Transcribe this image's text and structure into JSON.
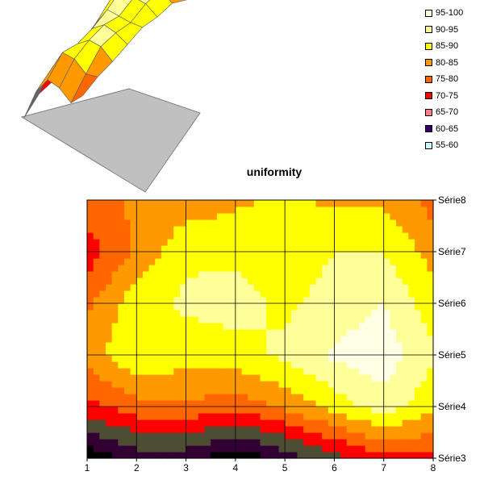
{
  "chart_data": {
    "type": "heatmap",
    "title": "uniformity",
    "x": [
      1,
      2,
      3,
      4,
      5,
      6,
      7,
      8
    ],
    "series": [
      {
        "name": "Série3",
        "values": [
          56,
          62,
          62,
          56,
          62,
          68,
          73,
          74
        ]
      },
      {
        "name": "Série4",
        "values": [
          73,
          78,
          79,
          77,
          81,
          87,
          93,
          86
        ]
      },
      {
        "name": "Série5",
        "values": [
          82,
          90,
          87,
          88,
          91,
          96,
          98,
          91
        ]
      },
      {
        "name": "Série6",
        "values": [
          79,
          88,
          91,
          92,
          89,
          92,
          95,
          87
        ]
      },
      {
        "name": "Série7",
        "values": [
          72,
          81,
          89,
          89,
          87,
          90,
          90,
          83
        ]
      },
      {
        "name": "Série8",
        "values": [
          78,
          81,
          82,
          84,
          86,
          84,
          84,
          78
        ]
      }
    ],
    "legend": [
      "95-100",
      "90-95",
      "85-90",
      "80-85",
      "75-80",
      "70-75",
      "65-70",
      "60-65",
      "55-60"
    ],
    "legend_position": "top-right",
    "grid": true,
    "zlim": [
      55,
      100
    ],
    "bands": [
      {
        "min": 95,
        "max": 100,
        "color": "#ffffe6"
      },
      {
        "min": 90,
        "max": 95,
        "color": "#ffff99"
      },
      {
        "min": 85,
        "max": 90,
        "color": "#ffff00"
      },
      {
        "min": 80,
        "max": 85,
        "color": "#ff9900"
      },
      {
        "min": 75,
        "max": 80,
        "color": "#ff6600"
      },
      {
        "min": 70,
        "max": 75,
        "color": "#ff0000"
      },
      {
        "min": 65,
        "max": 70,
        "color": "#4d4d33"
      },
      {
        "min": 60,
        "max": 65,
        "color": "#330033"
      },
      {
        "min": 55,
        "max": 60,
        "color": "#000000"
      }
    ],
    "legend_swatch_colors": [
      "#ffffe6",
      "#ffff99",
      "#ffff00",
      "#ff9900",
      "#ff6600",
      "#ff0000",
      "#ff8080",
      "#330066",
      "#ccffff"
    ]
  }
}
